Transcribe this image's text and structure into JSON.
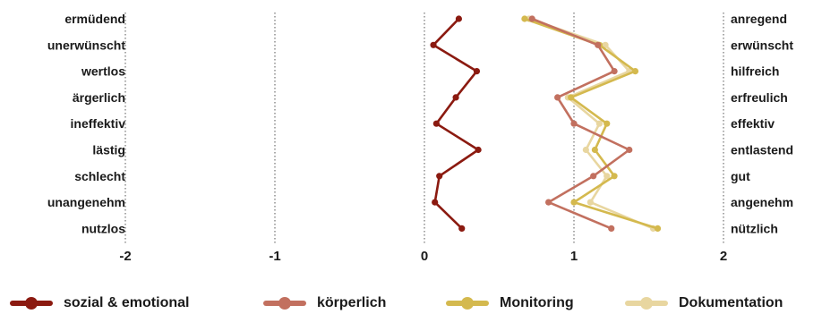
{
  "chart_data": {
    "type": "line",
    "orientation": "horizontal-profile",
    "left_labels": [
      "ermüdend",
      "unerwünscht",
      "wertlos",
      "ärgerlich",
      "ineffektiv",
      "lästig",
      "schlecht",
      "unangenehm",
      "nutzlos"
    ],
    "right_labels": [
      "anregend",
      "erwünscht",
      "hilfreich",
      "erfreulich",
      "effektiv",
      "entlastend",
      "gut",
      "angenehm",
      "nützlich"
    ],
    "xlim": [
      -2,
      2
    ],
    "xticks": [
      "-2",
      "-1",
      "0",
      "1",
      "2"
    ],
    "grid": "vertical-dotted",
    "legend_position": "bottom",
    "series": [
      {
        "name": "sozial & emotional",
        "color": "#8b1a10",
        "values": [
          0.23,
          0.06,
          0.35,
          0.21,
          0.08,
          0.36,
          0.1,
          0.07,
          0.25
        ]
      },
      {
        "name": "körperlich",
        "color": "#c2705f",
        "values": [
          0.72,
          1.16,
          1.27,
          0.89,
          1.0,
          1.37,
          1.13,
          0.83,
          1.25
        ]
      },
      {
        "name": "Monitoring",
        "color": "#d4b94e",
        "values": [
          0.67,
          1.17,
          1.41,
          0.98,
          1.22,
          1.14,
          1.27,
          1.0,
          1.56
        ]
      },
      {
        "name": "Dokumentation",
        "color": "#e8d6a0",
        "values": [
          0.7,
          1.21,
          1.37,
          0.96,
          1.17,
          1.08,
          1.22,
          1.11,
          1.53
        ]
      }
    ]
  }
}
